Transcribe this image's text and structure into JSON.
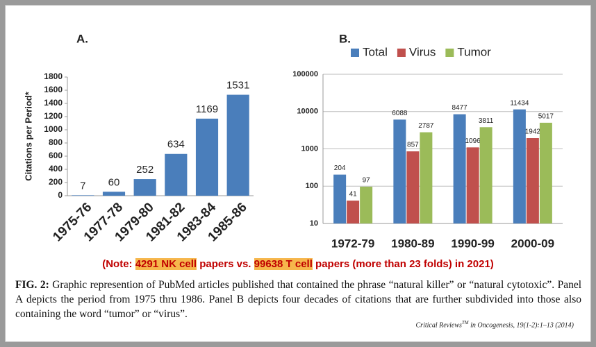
{
  "chart_data": [
    {
      "type": "bar",
      "title": "A.",
      "y_label": "Citations per Period*",
      "categories": [
        "1975-76",
        "1977-78",
        "1979-80",
        "1981-82",
        "1983-84",
        "1985-86"
      ],
      "values": [
        7,
        60,
        252,
        634,
        1169,
        1531
      ],
      "color": "#4a7ebb",
      "ylim": [
        0,
        1800
      ],
      "yticks": [
        0,
        200,
        400,
        600,
        800,
        1000,
        1200,
        1400,
        1600,
        1800
      ],
      "grid": false
    },
    {
      "type": "bar",
      "title": "B.",
      "log_scale": true,
      "legend_position": "top",
      "categories": [
        "1972-79",
        "1980-89",
        "1990-99",
        "2000-09"
      ],
      "series": [
        {
          "name": "Total",
          "color": "#4a7ebb",
          "values": [
            204,
            6088,
            8477,
            11434
          ]
        },
        {
          "name": "Virus",
          "color": "#c0504d",
          "values": [
            41,
            857,
            1096,
            1942
          ]
        },
        {
          "name": "Tumor",
          "color": "#9bbb59",
          "values": [
            97,
            2787,
            3811,
            5017
          ]
        }
      ],
      "ylim": [
        10,
        100000
      ],
      "yticks": [
        10,
        100,
        1000,
        10000,
        100000
      ],
      "grid": true
    }
  ],
  "note": [
    "(Note: ",
    "4291 NK cell",
    " papers vs. ",
    "99638 T cell",
    " papers (more than 23 folds) in 2021)"
  ],
  "caption": {
    "label": "FIG. 2:",
    "text": " Graphic represention of PubMed articles published that contained the phrase “natural killer” or “natural cytotoxic”. Panel A depicts the period from 1975 thru 1986. Panel B depicts four decades of citations that are further subdivided into those also containing the word “tumor” or “virus”."
  },
  "citation": {
    "journal": "Critical Reviews",
    "mark": "TM",
    "rest": " in Oncogenesis, 19(1-2):1–13 (2014)"
  }
}
